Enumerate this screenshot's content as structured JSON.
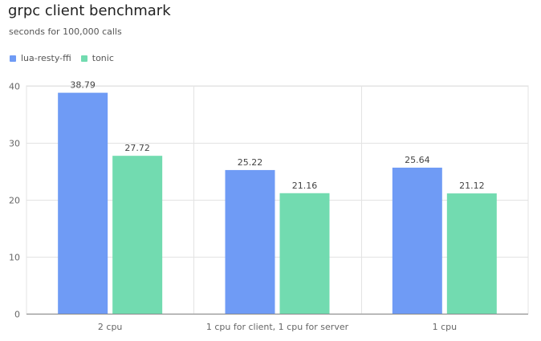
{
  "chart_data": {
    "type": "bar",
    "title": "grpc client benchmark",
    "subtitle": "seconds for 100,000 calls",
    "categories": [
      "2 cpu",
      "1 cpu for client, 1 cpu for server",
      "1 cpu"
    ],
    "series": [
      {
        "name": "lua-resty-ffi",
        "values": [
          38.79,
          25.22,
          25.64
        ],
        "color": "#6f9bf5"
      },
      {
        "name": "tonic",
        "values": [
          27.72,
          21.16,
          21.12
        ],
        "color": "#72dbb0"
      }
    ],
    "ylim": [
      0,
      40
    ],
    "yticks": [
      0,
      10,
      20,
      30,
      40
    ],
    "xlabel": "",
    "ylabel": "",
    "grid": true,
    "legend_position": "top-left",
    "data_labels": [
      "38.79",
      "27.72",
      "25.22",
      "21.16",
      "25.64",
      "21.12"
    ]
  }
}
